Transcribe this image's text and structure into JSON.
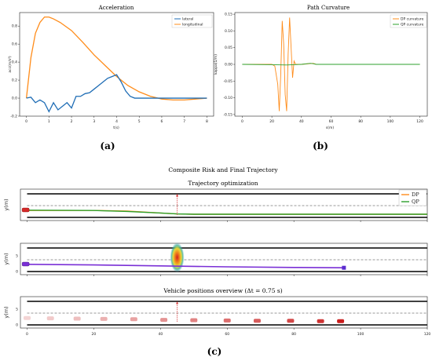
{
  "captions": {
    "a": "(a)",
    "b": "(b)",
    "c": "(c)"
  },
  "colors": {
    "orange": "#ff8c1a",
    "blue": "#1f6db5",
    "green": "#2ca02c",
    "purple": "#7a2fd6",
    "red": "#d42a2a"
  },
  "chart_data": [
    {
      "type": "line",
      "title": "Acceleration",
      "xlabel": "t(s)",
      "ylabel": "acc(m/s²)",
      "xlim": [
        -0.3,
        8.3
      ],
      "ylim": [
        -0.2,
        0.95
      ],
      "xticks": [
        "0",
        "1",
        "2",
        "3",
        "4",
        "5",
        "6",
        "7",
        "8"
      ],
      "yticks": [
        "-0.2",
        "0.0",
        "0.2",
        "0.4",
        "0.6",
        "0.8"
      ],
      "legend": "top-right",
      "series": [
        {
          "name": "lateral",
          "color": "#1f6db5",
          "x": [
            0,
            0.2,
            0.4,
            0.6,
            0.8,
            1.0,
            1.2,
            1.4,
            1.6,
            1.8,
            2.0,
            2.2,
            2.4,
            2.6,
            2.8,
            3.0,
            3.2,
            3.4,
            3.6,
            3.8,
            4.0,
            4.2,
            4.4,
            4.6,
            4.8,
            5,
            6,
            7,
            8
          ],
          "y": [
            0.0,
            0.01,
            -0.05,
            -0.02,
            -0.05,
            -0.15,
            -0.05,
            -0.13,
            -0.09,
            -0.05,
            -0.11,
            0.02,
            0.02,
            0.05,
            0.06,
            0.1,
            0.14,
            0.18,
            0.22,
            0.24,
            0.26,
            0.18,
            0.08,
            0.02,
            0.0,
            0.0,
            0.0,
            0.0,
            0.0
          ]
        },
        {
          "name": "longitudinal",
          "color": "#ff8c1a",
          "x": [
            0,
            0.2,
            0.4,
            0.6,
            0.8,
            1.0,
            1.2,
            1.5,
            2.0,
            2.5,
            3.0,
            3.5,
            4.0,
            4.5,
            5.0,
            5.5,
            6.0,
            6.5,
            7.0,
            7.5,
            8.0
          ],
          "y": [
            0.0,
            0.45,
            0.72,
            0.84,
            0.9,
            0.9,
            0.88,
            0.84,
            0.75,
            0.62,
            0.48,
            0.36,
            0.24,
            0.14,
            0.07,
            0.02,
            -0.01,
            -0.02,
            -0.02,
            -0.01,
            0.0
          ]
        }
      ]
    },
    {
      "type": "line",
      "title": "Path Curvature",
      "xlabel": "s(m)",
      "ylabel": "kappa(1/m)",
      "xlim": [
        -5,
        125
      ],
      "ylim": [
        -0.155,
        0.155
      ],
      "xticks": [
        "0",
        "20",
        "40",
        "60",
        "80",
        "100",
        "120"
      ],
      "yticks": [
        "-0.15",
        "-0.10",
        "-0.05",
        "0.00",
        "0.05",
        "0.10",
        "0.15"
      ],
      "legend": "top-right",
      "series": [
        {
          "name": "DP curvature",
          "color": "#ff8c1a",
          "x": [
            0,
            20,
            22,
            24,
            25,
            26,
            27,
            28,
            29,
            30,
            31,
            32,
            33,
            34,
            35,
            36,
            38,
            40,
            48,
            50,
            120
          ],
          "y": [
            0,
            0,
            -0.005,
            -0.06,
            -0.14,
            -0.03,
            0.13,
            0.06,
            -0.09,
            -0.14,
            0.03,
            0.14,
            0.05,
            -0.04,
            0.01,
            0.0,
            0.0,
            0.0,
            0.003,
            0.0,
            0.0
          ]
        },
        {
          "name": "QP curvature",
          "color": "#2ca02c",
          "x": [
            0,
            20,
            30,
            40,
            46,
            48,
            50,
            120
          ],
          "y": [
            0,
            -0.001,
            -0.002,
            0.0,
            0.003,
            0.002,
            0.0,
            0.0
          ]
        }
      ]
    },
    {
      "type": "line",
      "title": "Composite Risk and Final Trajectory",
      "subtitle": "Trajectory optimization",
      "ylabel": "y(m)",
      "xlim": [
        -2,
        120
      ],
      "ylim": [
        -1,
        9
      ],
      "legend": "top-right",
      "series": [
        {
          "name": "DP",
          "color": "#ff8c1a",
          "x": [
            0,
            20,
            30,
            40,
            45,
            50,
            120
          ],
          "y": [
            2.2,
            2.2,
            2.0,
            1.4,
            1.1,
            1.0,
            1.0
          ]
        },
        {
          "name": "QP",
          "color": "#2ca02c",
          "x": [
            0,
            20,
            30,
            40,
            45,
            50,
            120
          ],
          "y": [
            2.3,
            2.2,
            1.9,
            1.4,
            1.1,
            1.0,
            1.0
          ]
        }
      ]
    },
    {
      "type": "line",
      "ylabel": "y(m)",
      "xlim": [
        -2,
        120
      ],
      "ylim": [
        -1,
        9
      ],
      "yticks": [
        "0",
        "5"
      ],
      "series": [
        {
          "color": "#7a2fd6",
          "x": [
            0,
            20,
            40,
            60,
            80,
            95
          ],
          "y": [
            2.3,
            2.1,
            1.8,
            1.5,
            1.3,
            1.2
          ]
        }
      ]
    },
    {
      "type": "scatter",
      "subtitle": "Vehicle positions overview (Δt = 0.75 s)",
      "xlabel": "",
      "ylabel": "y(m)",
      "xlim": [
        -2,
        120
      ],
      "ylim": [
        -1,
        9
      ],
      "xticks": [
        "0",
        "20",
        "40",
        "60",
        "80",
        "100",
        "120"
      ],
      "yticks": [
        "0",
        "5"
      ],
      "x": [
        0,
        7,
        15,
        23,
        32,
        41,
        50,
        60,
        69,
        79,
        88,
        94
      ],
      "y": [
        2.2,
        2.1,
        2.0,
        1.9,
        1.8,
        1.6,
        1.5,
        1.4,
        1.3,
        1.3,
        1.2,
        1.2
      ]
    }
  ]
}
